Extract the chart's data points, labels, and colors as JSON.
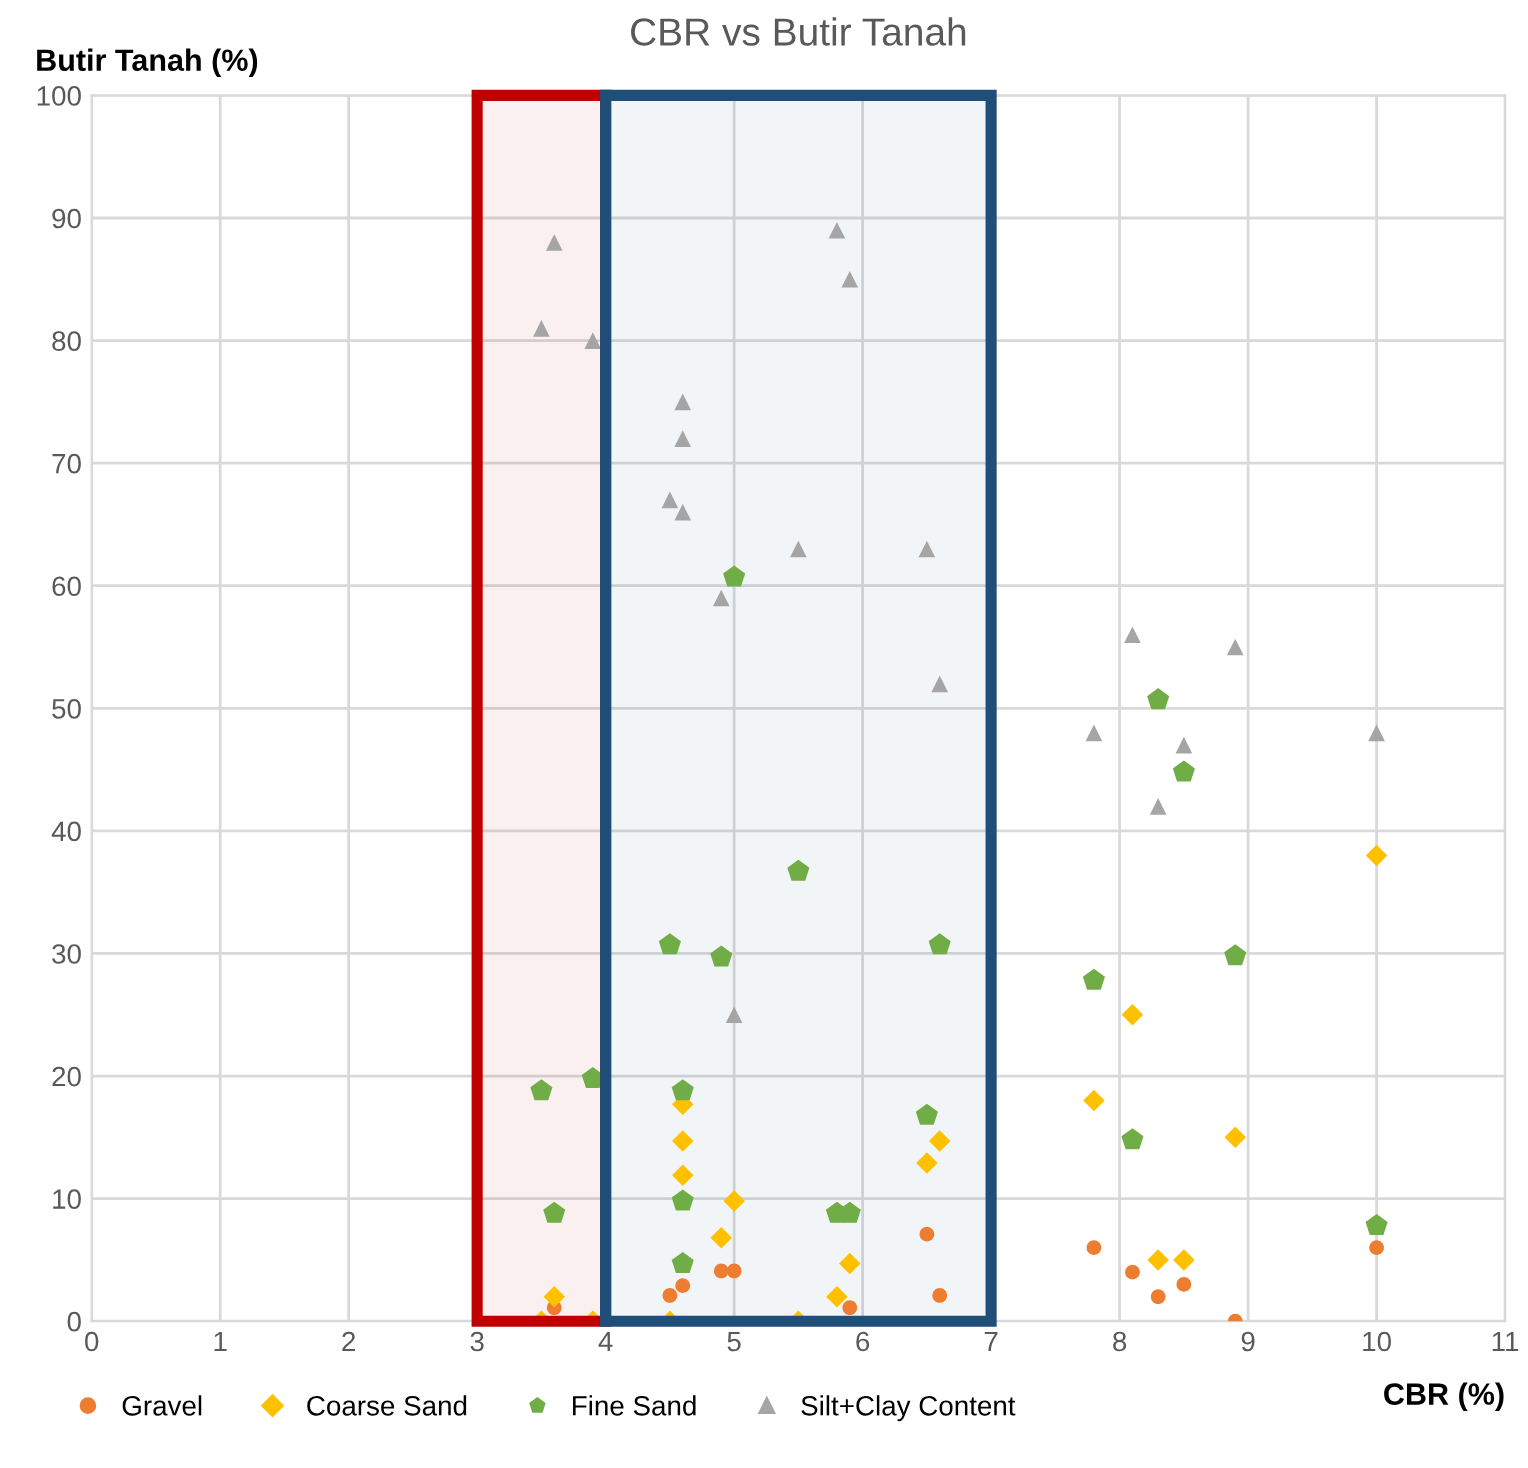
{
  "chart_data": {
    "type": "scatter",
    "title": "CBR vs Butir Tanah",
    "xlabel": "CBR (%)",
    "ylabel": "Butir Tanah (%)",
    "xlim": [
      0,
      11
    ],
    "xticks": [
      0,
      1,
      2,
      3,
      4,
      5,
      6,
      7,
      8,
      9,
      10,
      11
    ],
    "ylim": [
      0,
      100
    ],
    "yticks": [
      0,
      10,
      20,
      30,
      40,
      50,
      60,
      70,
      80,
      90,
      100
    ],
    "grid": true,
    "legend": "bottom left",
    "bands": [
      {
        "axis": "x",
        "from": 3,
        "to": 4,
        "color": "#c00000"
      },
      {
        "axis": "x",
        "from": 4,
        "to": 7,
        "color": "#1f4e79"
      }
    ],
    "series": [
      {
        "name": "Gravel",
        "color": "#ed7d31",
        "marker": "circle",
        "x": [
          3.6,
          4.5,
          4.6,
          4.9,
          5.0,
          5.9,
          6.5,
          6.6,
          7.8,
          8.1,
          8.3,
          8.5,
          8.9,
          10
        ],
        "values": [
          1.1,
          2.1,
          2.9,
          4.1,
          4.1,
          1.1,
          7.1,
          2.1,
          6,
          4,
          2,
          3,
          0,
          6
        ]
      },
      {
        "name": "Coarse Sand",
        "color": "#ffc000",
        "marker": "diamond",
        "x": [
          3.5,
          3.6,
          3.9,
          4.5,
          4.6,
          4.6,
          4.6,
          4.9,
          5.0,
          5.5,
          5.8,
          5.9,
          6.5,
          6.6,
          7.8,
          8.1,
          8.3,
          8.5,
          8.9,
          10
        ],
        "values": [
          0,
          2,
          0,
          0,
          17.7,
          14.7,
          11.9,
          6.8,
          9.8,
          0,
          2,
          4.7,
          12.9,
          14.7,
          18,
          25,
          5,
          5,
          15,
          38
        ]
      },
      {
        "name": "Fine Sand",
        "color": "#70ad47",
        "x": [
          3.5,
          3.6,
          3.9,
          4.5,
          4.6,
          4.6,
          4.6,
          4.9,
          5.0,
          5.5,
          5.8,
          5.9,
          6.5,
          6.6,
          7.8,
          8.1,
          8.3,
          8.5,
          8.9,
          10
        ],
        "values": [
          18.8,
          8.8,
          19.8,
          30.7,
          18.8,
          9.8,
          4.7,
          29.7,
          60.7,
          36.7,
          8.8,
          8.8,
          16.8,
          30.7,
          27.8,
          14.8,
          50.7,
          44.8,
          29.8,
          7.8
        ]
      },
      {
        "name": "Silt+Clay Content",
        "color": "#a5a5a5",
        "marker": "triangle",
        "x": [
          3.5,
          3.6,
          3.9,
          4.5,
          4.6,
          4.6,
          4.6,
          4.9,
          5.0,
          5.5,
          5.8,
          5.9,
          6.5,
          6.6,
          7.8,
          8.1,
          8.3,
          8.5,
          8.9,
          10
        ],
        "values": [
          81,
          88,
          80,
          67,
          75,
          72,
          66,
          59,
          25,
          63,
          89,
          85,
          63,
          52,
          48,
          56,
          42,
          47,
          55,
          48
        ]
      }
    ]
  }
}
